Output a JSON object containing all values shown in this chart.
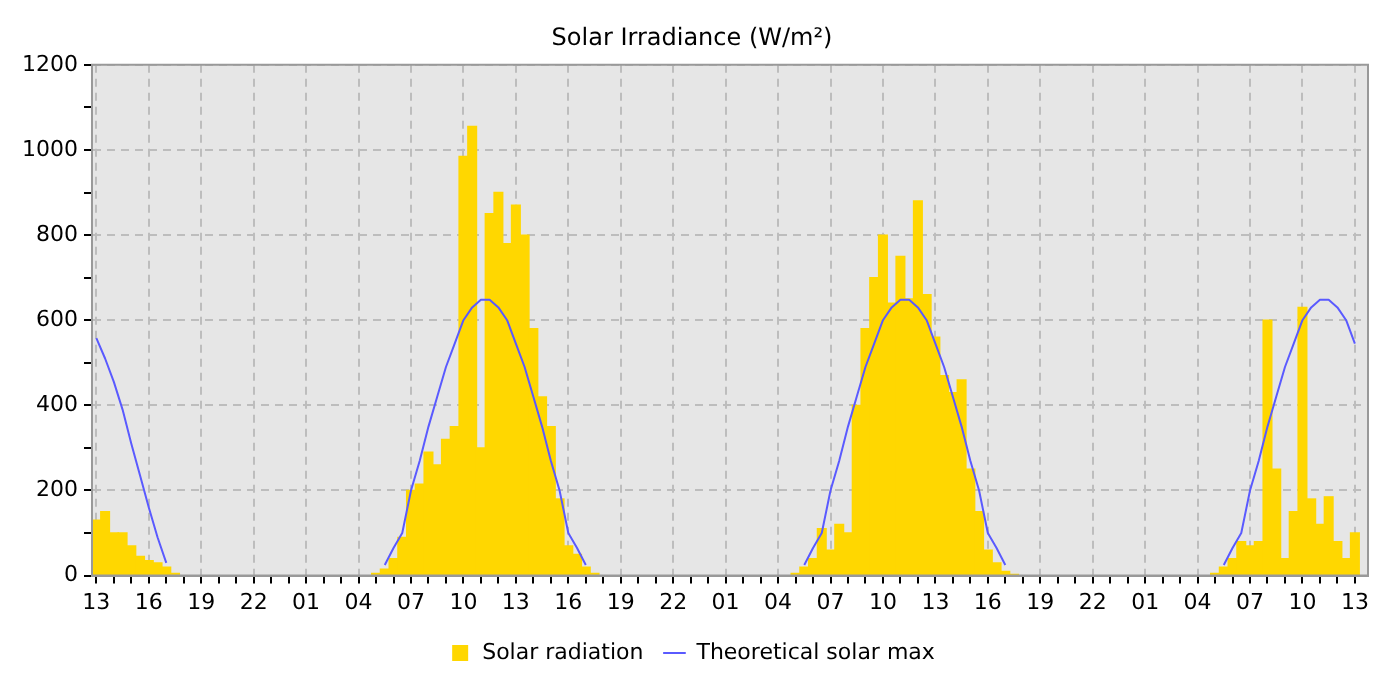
{
  "chart_data": {
    "type": "bar",
    "title": "Solar Irradiance (W/m²)",
    "categories": [
      "13",
      null,
      null,
      null,
      null,
      null,
      "16",
      null,
      null,
      null,
      null,
      null,
      "19",
      null,
      null,
      null,
      null,
      null,
      "22",
      null,
      null,
      null,
      null,
      null,
      "01",
      null,
      null,
      null,
      null,
      null,
      "04",
      null,
      null,
      null,
      null,
      null,
      "07",
      null,
      null,
      null,
      null,
      null,
      "10",
      null,
      null,
      null,
      null,
      null,
      "13",
      null,
      null,
      null,
      null,
      null,
      "16",
      null,
      null,
      null,
      null,
      null,
      "19",
      null,
      null,
      null,
      null,
      null,
      "22",
      null,
      null,
      null,
      null,
      null,
      "01",
      null,
      null,
      null,
      null,
      null,
      "04",
      null,
      null,
      null,
      null,
      null,
      "07",
      null,
      null,
      null,
      null,
      null,
      "10",
      null,
      null,
      null,
      null,
      null,
      "13",
      null,
      null,
      null,
      null,
      null,
      "16",
      null,
      null,
      null,
      null,
      null,
      "19",
      null,
      null,
      null,
      null,
      null,
      "22",
      null,
      null,
      null,
      null,
      null,
      "01",
      null,
      null,
      null,
      null,
      null,
      "04",
      null,
      null,
      null,
      null,
      null,
      "07",
      null,
      null,
      null,
      null,
      null,
      "10",
      null,
      null,
      null,
      null,
      null,
      "13",
      null
    ],
    "ylim": [
      0,
      1200
    ],
    "yticks": [
      0,
      {
        "value": 100,
        "label": null
      },
      200,
      {
        "value": 300,
        "label": null
      },
      400,
      {
        "value": 500,
        "label": null
      },
      600,
      {
        "value": 700,
        "label": null
      },
      800,
      {
        "value": 900,
        "label": null
      },
      1000,
      {
        "value": 1100,
        "label": null
      },
      1200
    ],
    "grid": true,
    "legend": "bottom",
    "series": [
      {
        "name": "Solar radiation",
        "color": "#ffd700",
        "values": [
          130,
          150,
          100,
          100,
          70,
          45,
          35,
          30,
          20,
          5,
          null,
          null,
          null,
          null,
          null,
          null,
          null,
          null,
          null,
          null,
          null,
          null,
          null,
          null,
          null,
          null,
          null,
          null,
          null,
          null,
          null,
          null,
          5,
          15,
          40,
          90,
          200,
          215,
          290,
          260,
          320,
          350,
          985,
          1055,
          300,
          850,
          900,
          780,
          870,
          800,
          580,
          420,
          350,
          180,
          70,
          50,
          20,
          5,
          null,
          null,
          null,
          null,
          null,
          null,
          null,
          null,
          null,
          null,
          null,
          null,
          null,
          null,
          null,
          null,
          null,
          null,
          null,
          null,
          null,
          null,
          5,
          20,
          40,
          110,
          60,
          120,
          100,
          400,
          580,
          700,
          800,
          640,
          750,
          650,
          880,
          660,
          560,
          470,
          430,
          460,
          250,
          150,
          60,
          30,
          10,
          3,
          null,
          null,
          null,
          null,
          null,
          null,
          null,
          null,
          null,
          null,
          null,
          null,
          null,
          null,
          null,
          null,
          null,
          null,
          null,
          null,
          null,
          null,
          5,
          20,
          40,
          80,
          70,
          80,
          600,
          250,
          40,
          150,
          630,
          180,
          120,
          185,
          80,
          40,
          100,
          null
        ]
      },
      {
        "name": "Theoretical solar max",
        "type": "line",
        "color": "#5a5aff",
        "marker": "none",
        "line_style": "solid",
        "values": [
          558,
          510,
          455,
          390,
          310,
          235,
          160,
          90,
          30,
          null,
          null,
          null,
          null,
          null,
          null,
          null,
          null,
          null,
          null,
          null,
          null,
          null,
          null,
          null,
          null,
          null,
          null,
          null,
          null,
          null,
          null,
          null,
          null,
          25,
          65,
          100,
          200,
          270,
          350,
          420,
          490,
          545,
          600,
          630,
          648,
          648,
          630,
          600,
          545,
          490,
          420,
          350,
          270,
          200,
          100,
          65,
          25,
          null,
          null,
          null,
          null,
          null,
          null,
          null,
          null,
          null,
          null,
          null,
          null,
          null,
          null,
          null,
          null,
          null,
          null,
          null,
          null,
          null,
          null,
          null,
          null,
          25,
          65,
          100,
          200,
          270,
          350,
          420,
          490,
          545,
          600,
          630,
          648,
          648,
          630,
          600,
          545,
          490,
          420,
          350,
          270,
          200,
          100,
          65,
          25,
          null,
          null,
          null,
          null,
          null,
          null,
          null,
          null,
          null,
          null,
          null,
          null,
          null,
          null,
          null,
          null,
          null,
          null,
          null,
          null,
          null,
          null,
          null,
          null,
          25,
          65,
          100,
          200,
          270,
          350,
          420,
          490,
          545,
          600,
          630,
          648,
          648,
          630,
          600,
          545,
          null
        ]
      }
    ]
  }
}
